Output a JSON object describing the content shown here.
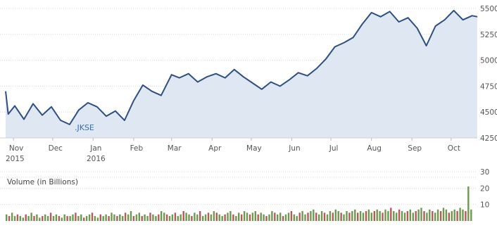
{
  "chart_data": [
    {
      "type": "area",
      "series": [
        {
          "name": ".JKSE",
          "x": [
            "2015-10-26",
            "2015-10-28",
            "2015-11-02",
            "2015-11-09",
            "2015-11-16",
            "2015-11-23",
            "2015-11-30",
            "2015-12-07",
            "2015-12-14",
            "2015-12-21",
            "2015-12-28",
            "2016-01-04",
            "2016-01-11",
            "2016-01-18",
            "2016-01-25",
            "2016-02-01",
            "2016-02-08",
            "2016-02-15",
            "2016-02-22",
            "2016-03-01",
            "2016-03-07",
            "2016-03-14",
            "2016-03-21",
            "2016-03-28",
            "2016-04-04",
            "2016-04-11",
            "2016-04-18",
            "2016-04-25",
            "2016-05-02",
            "2016-05-09",
            "2016-05-16",
            "2016-05-23",
            "2016-05-30",
            "2016-06-06",
            "2016-06-13",
            "2016-06-20",
            "2016-06-27",
            "2016-07-04",
            "2016-07-11",
            "2016-07-18",
            "2016-07-25",
            "2016-08-01",
            "2016-08-08",
            "2016-08-15",
            "2016-08-22",
            "2016-08-29",
            "2016-09-05",
            "2016-09-12",
            "2016-09-19",
            "2016-09-26",
            "2016-10-03",
            "2016-10-10",
            "2016-10-17",
            "2016-10-21"
          ],
          "values": [
            4700,
            4480,
            4560,
            4430,
            4580,
            4470,
            4550,
            4420,
            4380,
            4520,
            4590,
            4550,
            4460,
            4510,
            4420,
            4610,
            4760,
            4700,
            4660,
            4860,
            4830,
            4870,
            4790,
            4840,
            4870,
            4830,
            4910,
            4840,
            4780,
            4720,
            4790,
            4750,
            4810,
            4880,
            4850,
            4920,
            5010,
            5130,
            5170,
            5220,
            5350,
            5460,
            5420,
            5470,
            5370,
            5410,
            5310,
            5140,
            5330,
            5390,
            5480,
            5390,
            5430,
            5420
          ]
        }
      ],
      "ylim": [
        4250,
        5500
      ],
      "yticks": [
        "5500",
        "5250",
        "5000",
        "4750",
        "4500",
        "4250"
      ],
      "month_labels": [
        "Nov",
        "Dec",
        "Jan",
        "Feb",
        "Mar",
        "Apr",
        "May",
        "Jun",
        "Jul",
        "Aug",
        "Sep",
        "Oct"
      ],
      "year_labels": [
        "2015",
        "2016"
      ],
      "grid": true
    },
    {
      "type": "bar",
      "title": "Volume (in Billions)",
      "ylim": [
        0,
        30
      ],
      "yticks": [
        "30",
        "20",
        "10"
      ],
      "values": [
        4,
        3,
        5,
        3,
        4,
        3,
        2,
        4,
        3,
        5,
        3,
        4,
        2,
        3,
        4,
        3,
        5,
        3,
        4,
        3,
        2,
        4,
        3,
        3,
        4,
        5,
        3,
        4,
        2,
        3,
        4,
        5,
        3,
        2,
        4,
        3,
        4,
        3,
        5,
        4,
        3,
        4,
        3,
        5,
        4,
        6,
        3,
        4,
        5,
        3,
        4,
        3,
        5,
        4,
        3,
        4,
        6,
        5,
        4,
        3,
        4,
        5,
        3,
        4,
        6,
        5,
        4,
        3,
        5,
        4,
        6,
        3,
        4,
        5,
        4,
        6,
        5,
        4,
        3,
        4,
        5,
        6,
        4,
        3,
        5,
        4,
        6,
        5,
        4,
        5,
        6,
        4,
        5,
        4,
        3,
        4,
        6,
        5,
        4,
        5,
        3,
        4,
        5,
        6,
        4,
        3,
        5,
        6,
        4,
        5,
        6,
        7,
        5,
        4,
        6,
        5,
        4,
        6,
        5,
        7,
        6,
        5,
        4,
        6,
        5,
        6,
        7,
        5,
        6,
        5,
        6,
        7,
        5,
        6,
        7,
        6,
        5,
        7,
        6,
        8,
        6,
        5,
        7,
        6,
        5,
        6,
        7,
        5,
        6,
        7,
        8,
        6,
        5,
        7,
        6,
        5,
        7,
        6,
        8,
        7,
        5,
        6,
        7,
        6,
        8,
        7,
        6,
        21,
        7
      ]
    }
  ]
}
